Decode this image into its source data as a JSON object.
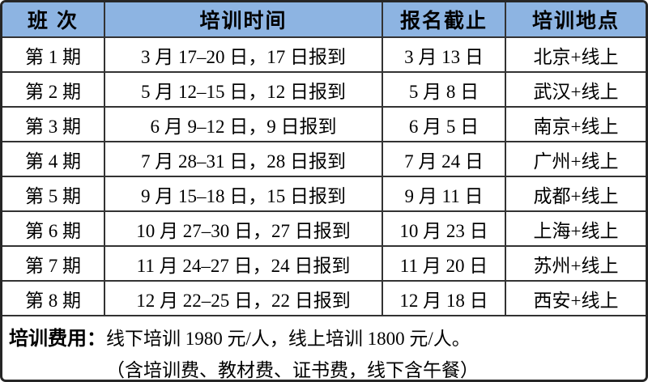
{
  "table": {
    "headers": {
      "session": "班 次",
      "time": "培训时间",
      "deadline": "报名截止",
      "location": "培训地点"
    },
    "rows": [
      {
        "session": "第 1 期",
        "time": "3 月 17–20 日，17 日报到",
        "deadline": "3 月 13 日",
        "location": "北京+线上"
      },
      {
        "session": "第 2 期",
        "time": "5 月 12–15 日，12 日报到",
        "deadline": "5 月 8 日",
        "location": "武汉+线上"
      },
      {
        "session": "第 3 期",
        "time": "6 月 9–12 日，9 日报到",
        "deadline": "6 月 5 日",
        "location": "南京+线上"
      },
      {
        "session": "第 4 期",
        "time": "7 月 28–31 日，28 日报到",
        "deadline": "7 月 24 日",
        "location": "广州+线上"
      },
      {
        "session": "第 5 期",
        "time": "9 月 15–18 日，15 日报到",
        "deadline": "9 月 11 日",
        "location": "成都+线上"
      },
      {
        "session": "第 6 期",
        "time": "10 月 27–30 日，27 日报到",
        "deadline": "10 月 23 日",
        "location": "上海+线上"
      },
      {
        "session": "第 7 期",
        "time": "11 月 24–27 日，24 日报到",
        "deadline": "11 月 20 日",
        "location": "苏州+线上"
      },
      {
        "session": "第 8 期",
        "time": "12 月 22–25 日，22 日报到",
        "deadline": "12 月 18 日",
        "location": "西安+线上"
      }
    ]
  },
  "footer": {
    "fee_label": "培训费用：",
    "fee_text": "线下培训 1980 元/人，线上培训 1800 元/人。",
    "fee_note": "（含培训费、教材费、证书费，线下含午餐）"
  },
  "colors": {
    "header_bg": "#8DB4E2",
    "line": "#333333",
    "border": "#262626",
    "text": "#000000"
  }
}
